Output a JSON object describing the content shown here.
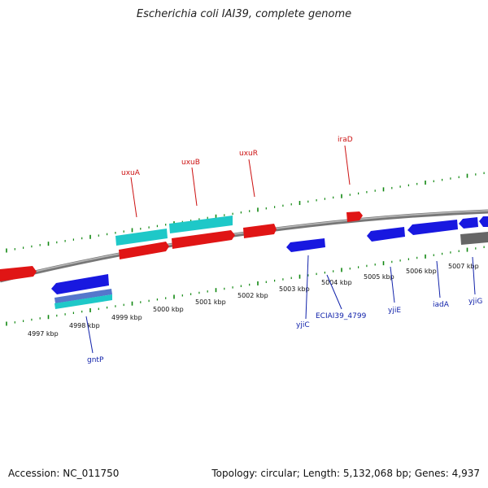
{
  "title": "Escherichia coli IAI39, complete genome",
  "footer": {
    "accession": "Accession: NC_011750",
    "stats": "Topology: circular; Length: 5,132,068 bp; Genes: 4,937"
  },
  "ticks": [
    "4997 kbp",
    "4998 kbp",
    "4999 kbp",
    "5000 kbp",
    "5001 kbp",
    "5002 kbp",
    "5003 kbp",
    "5004 kbp",
    "5005 kbp",
    "5006 kbp",
    "5007 kbp"
  ],
  "genes_forward": [
    "uxuA",
    "uxuB",
    "uxuR",
    "iraD"
  ],
  "genes_reverse": [
    "gntP",
    "yjiC",
    "ECIAI39_4799",
    "yjiE",
    "iadA",
    "yjiG"
  ],
  "colors": {
    "forward_gene": "#ee1111",
    "reverse_gene": "#1111dd",
    "rna": "#22cccc",
    "backbone": "#888888",
    "ruler": "#118811",
    "other": "#666666"
  }
}
